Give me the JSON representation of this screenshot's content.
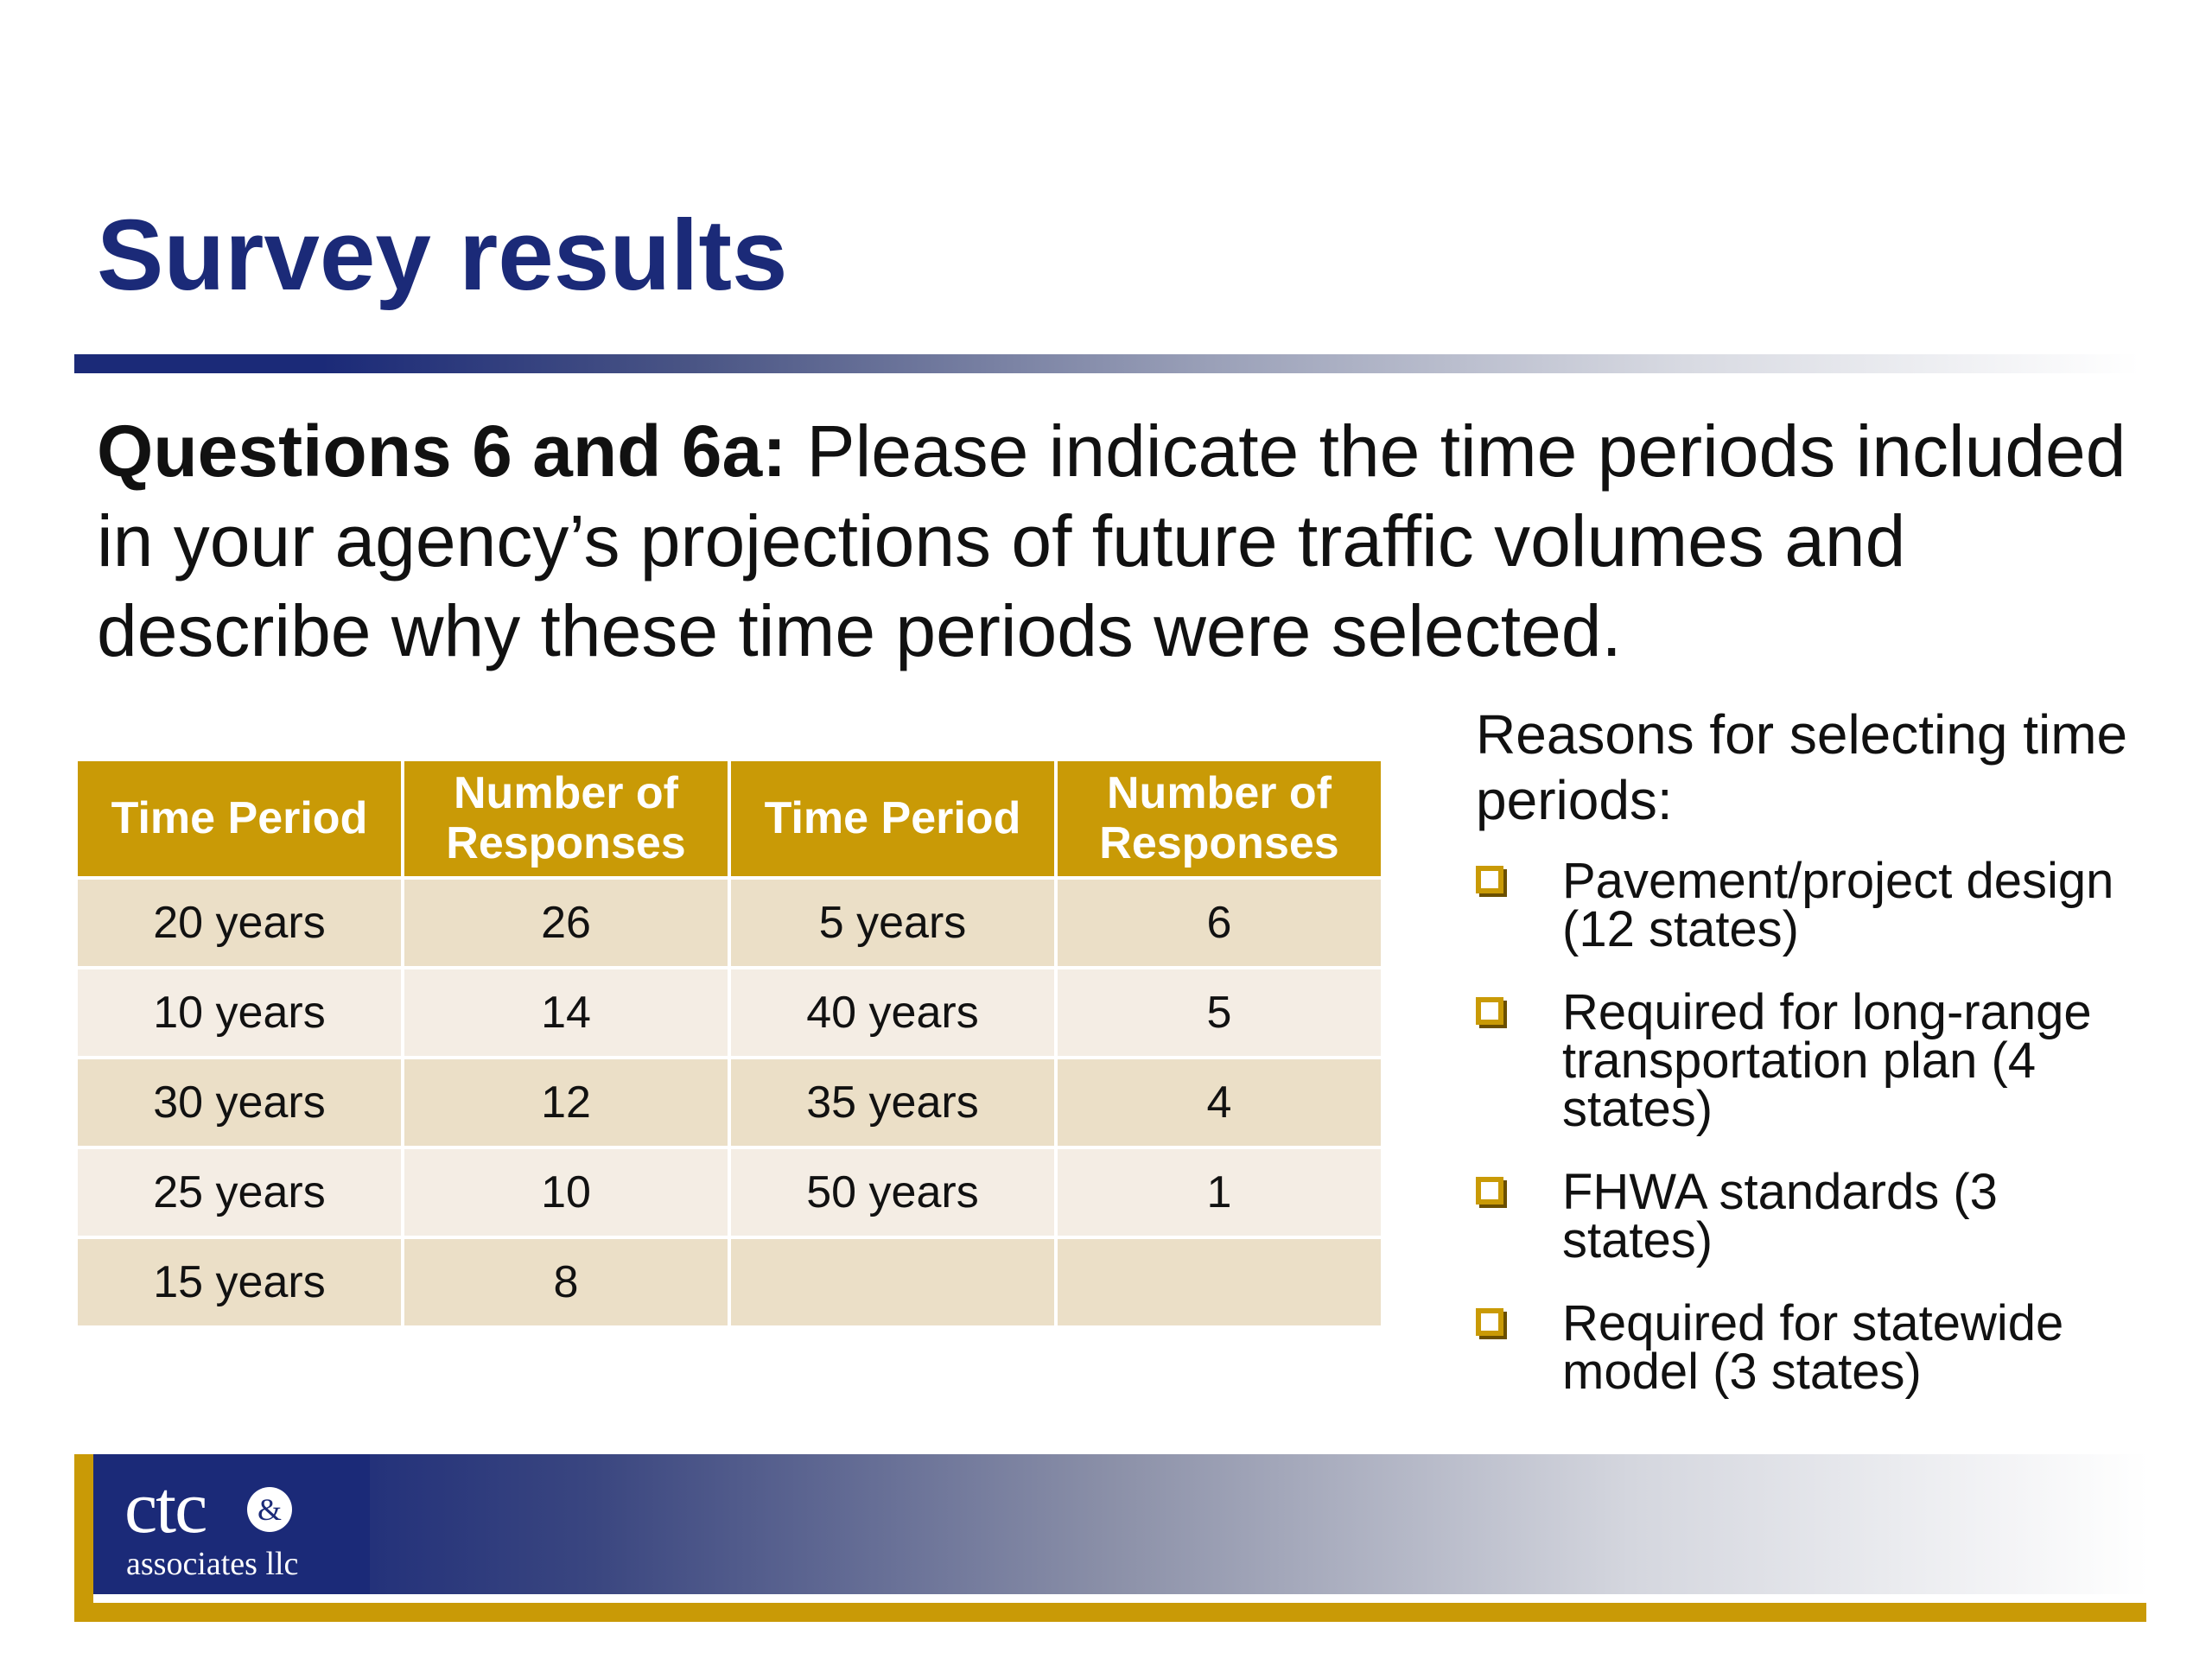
{
  "slide": {
    "title": "Survey results",
    "question_label": "Questions 6 and 6a:",
    "question_text": " Please indicate the time periods included in your agency’s projections of future traffic volumes and describe why these time periods were selected."
  },
  "table": {
    "headers": [
      "Time Period",
      "Number of Responses",
      "Time Period",
      "Number of Responses"
    ],
    "rows": [
      [
        "20 years",
        "26",
        "5 years",
        "6"
      ],
      [
        "10 years",
        "14",
        "40 years",
        "5"
      ],
      [
        "30 years",
        "12",
        "35 years",
        "4"
      ],
      [
        "25 years",
        "10",
        "50 years",
        "1"
      ],
      [
        "15 years",
        "8",
        "",
        ""
      ]
    ]
  },
  "reasons": {
    "title": "Reasons for selecting time periods:",
    "items": [
      "Pavement/project design (12 states)",
      "Required for long-range transportation plan (4 states)",
      "FHWA standards (3 states)",
      "Required for statewide model (3 states)"
    ]
  },
  "logo": {
    "main": "ctc",
    "amp": "&",
    "sub": "associates llc"
  },
  "colors": {
    "title": "#1b2a78",
    "accent_gold": "#c99a06",
    "row_odd": "#ebdfc7",
    "row_even": "#f4ede4"
  }
}
